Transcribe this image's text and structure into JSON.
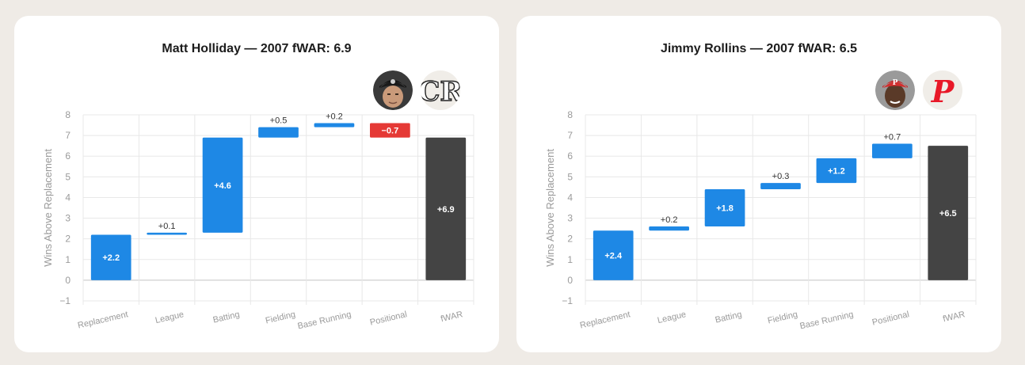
{
  "colors": {
    "positive": "#1e88e5",
    "negative": "#e53935",
    "total": "#444444",
    "background": "#efebe6",
    "card": "#ffffff"
  },
  "charts": [
    {
      "title": "Matt Holliday — 2007 fWAR: 6.9",
      "player_icon": "player-headshot-rockies-icon",
      "team_logo": "colorado-rockies-logo-icon",
      "team_logo_text": "CR"
    },
    {
      "title": "Jimmy Rollins — 2007 fWAR: 6.5",
      "player_icon": "player-headshot-phillies-icon",
      "team_logo": "philadelphia-phillies-logo-icon",
      "team_logo_text": "P"
    }
  ],
  "chart_data": [
    {
      "type": "bar",
      "subtype": "waterfall",
      "title": "Matt Holliday — 2007 fWAR: 6.9",
      "ylabel": "Wins Above Replacement",
      "xlabel": "",
      "categories": [
        "Replacement",
        "League",
        "Batting",
        "Fielding",
        "Base Running",
        "Positional",
        "fWAR"
      ],
      "values": [
        2.2,
        0.1,
        4.6,
        0.5,
        0.2,
        -0.7,
        6.9
      ],
      "labels": [
        "+2.2",
        "+0.1",
        "+4.6",
        "+0.5",
        "+0.2",
        "−0.7",
        "+6.9"
      ],
      "is_total": [
        false,
        false,
        false,
        false,
        false,
        false,
        true
      ],
      "ylim": [
        -1,
        8
      ],
      "yticks": [
        -1,
        0,
        1,
        2,
        3,
        4,
        5,
        6,
        7,
        8
      ],
      "ytick_labels": [
        "−1",
        "0",
        "1",
        "2",
        "3",
        "4",
        "5",
        "6",
        "7",
        "8"
      ],
      "grid": true
    },
    {
      "type": "bar",
      "subtype": "waterfall",
      "title": "Jimmy Rollins — 2007 fWAR: 6.5",
      "ylabel": "Wins Above Replacement",
      "xlabel": "",
      "categories": [
        "Replacement",
        "League",
        "Batting",
        "Fielding",
        "Base Running",
        "Positional",
        "fWAR"
      ],
      "values": [
        2.4,
        0.2,
        1.8,
        0.3,
        1.2,
        0.7,
        6.5
      ],
      "labels": [
        "+2.4",
        "+0.2",
        "+1.8",
        "+0.3",
        "+1.2",
        "+0.7",
        "+6.5"
      ],
      "is_total": [
        false,
        false,
        false,
        false,
        false,
        false,
        true
      ],
      "ylim": [
        -1,
        8
      ],
      "yticks": [
        -1,
        0,
        1,
        2,
        3,
        4,
        5,
        6,
        7,
        8
      ],
      "ytick_labels": [
        "−1",
        "0",
        "1",
        "2",
        "3",
        "4",
        "5",
        "6",
        "7",
        "8"
      ],
      "grid": true
    }
  ]
}
